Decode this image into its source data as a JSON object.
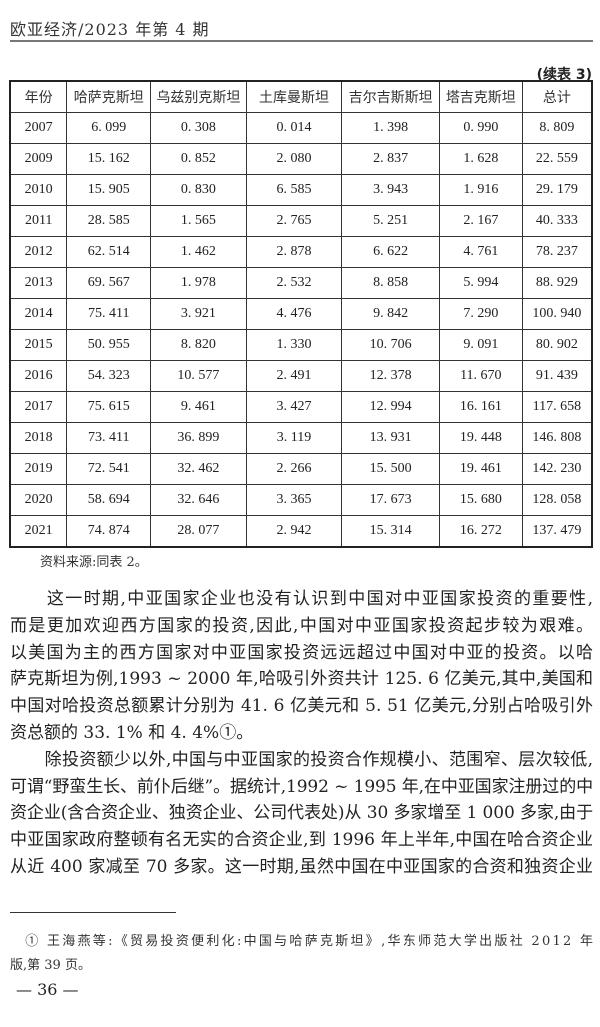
{
  "header": {
    "running_title": "欧亚经济/2023 年第 4 期"
  },
  "table": {
    "continued_label": "(续表 3)",
    "columns": [
      "年份",
      "哈萨克斯坦",
      "乌兹别克斯坦",
      "土库曼斯坦",
      "吉尔吉斯斯坦",
      "塔吉克斯坦",
      "总计"
    ],
    "rows": [
      [
        "2007",
        "6. 099",
        "0. 308",
        "0. 014",
        "1. 398",
        "0. 990",
        "8. 809"
      ],
      [
        "2009",
        "15. 162",
        "0. 852",
        "2. 080",
        "2. 837",
        "1. 628",
        "22. 559"
      ],
      [
        "2010",
        "15. 905",
        "0. 830",
        "6. 585",
        "3. 943",
        "1. 916",
        "29. 179"
      ],
      [
        "2011",
        "28. 585",
        "1. 565",
        "2. 765",
        "5. 251",
        "2. 167",
        "40. 333"
      ],
      [
        "2012",
        "62. 514",
        "1. 462",
        "2. 878",
        "6. 622",
        "4. 761",
        "78. 237"
      ],
      [
        "2013",
        "69. 567",
        "1. 978",
        "2. 532",
        "8. 858",
        "5. 994",
        "88. 929"
      ],
      [
        "2014",
        "75. 411",
        "3. 921",
        "4. 476",
        "9. 842",
        "7. 290",
        "100. 940"
      ],
      [
        "2015",
        "50. 955",
        "8. 820",
        "1. 330",
        "10. 706",
        "9. 091",
        "80. 902"
      ],
      [
        "2016",
        "54. 323",
        "10. 577",
        "2. 491",
        "12. 378",
        "11. 670",
        "91. 439"
      ],
      [
        "2017",
        "75. 615",
        "9. 461",
        "3. 427",
        "12. 994",
        "16. 161",
        "117. 658"
      ],
      [
        "2018",
        "73. 411",
        "36. 899",
        "3. 119",
        "13. 931",
        "19. 448",
        "146. 808"
      ],
      [
        "2019",
        "72. 541",
        "32. 462",
        "2. 266",
        "15. 500",
        "19. 461",
        "142. 230"
      ],
      [
        "2020",
        "58. 694",
        "32. 646",
        "3. 365",
        "17. 673",
        "15. 680",
        "128. 058"
      ],
      [
        "2021",
        "74. 874",
        "28. 077",
        "2. 942",
        "15. 314",
        "16. 272",
        "137. 479"
      ]
    ],
    "source": "资料来源:同表 2。"
  },
  "body": {
    "lines": [
      "　　这一时期,中亚国家企业也没有认识到中国对中亚国家投资的重要性,",
      "而是更加欢迎西方国家的投资,因此,中国对中亚国家投资起步较为艰难。",
      "以美国为主的西方国家对中亚国家投资远远超过中国对中亚的投资。以哈",
      "萨克斯坦为例,1993 ~ 2000 年,哈吸引外资共计 125. 6 亿美元,其中,美国和",
      "中国对哈投资总额累计分别为 41. 6 亿美元和 5. 51 亿美元,分别占哈吸引外",
      "资总额的 33. 1% 和 4. 4%①。",
      "　　除投资额少以外,中国与中亚国家的投资合作规模小、范围窄、层次较低,",
      "可谓“野蛮生长、前仆后继”。据统计,1992 ~ 1995 年,在中亚国家注册过的中",
      "资企业(含合资企业、独资企业、公司代表处)从 30 多家增至 1 000 多家,由于",
      "中亚国家政府整顿有名无实的合资企业,到 1996 年上半年,中国在哈合资企业",
      "从近 400 家减至 70 多家。这一时期,虽然中国在中亚国家的合资和独资企业"
    ]
  },
  "footnote": {
    "line1": "　① 王海燕等:《贸易投资便利化:中国与哈萨克斯坦》,华东师范大学出版社 2012 年",
    "line2": "版,第 39 页。"
  },
  "page_number": "— 36 —"
}
